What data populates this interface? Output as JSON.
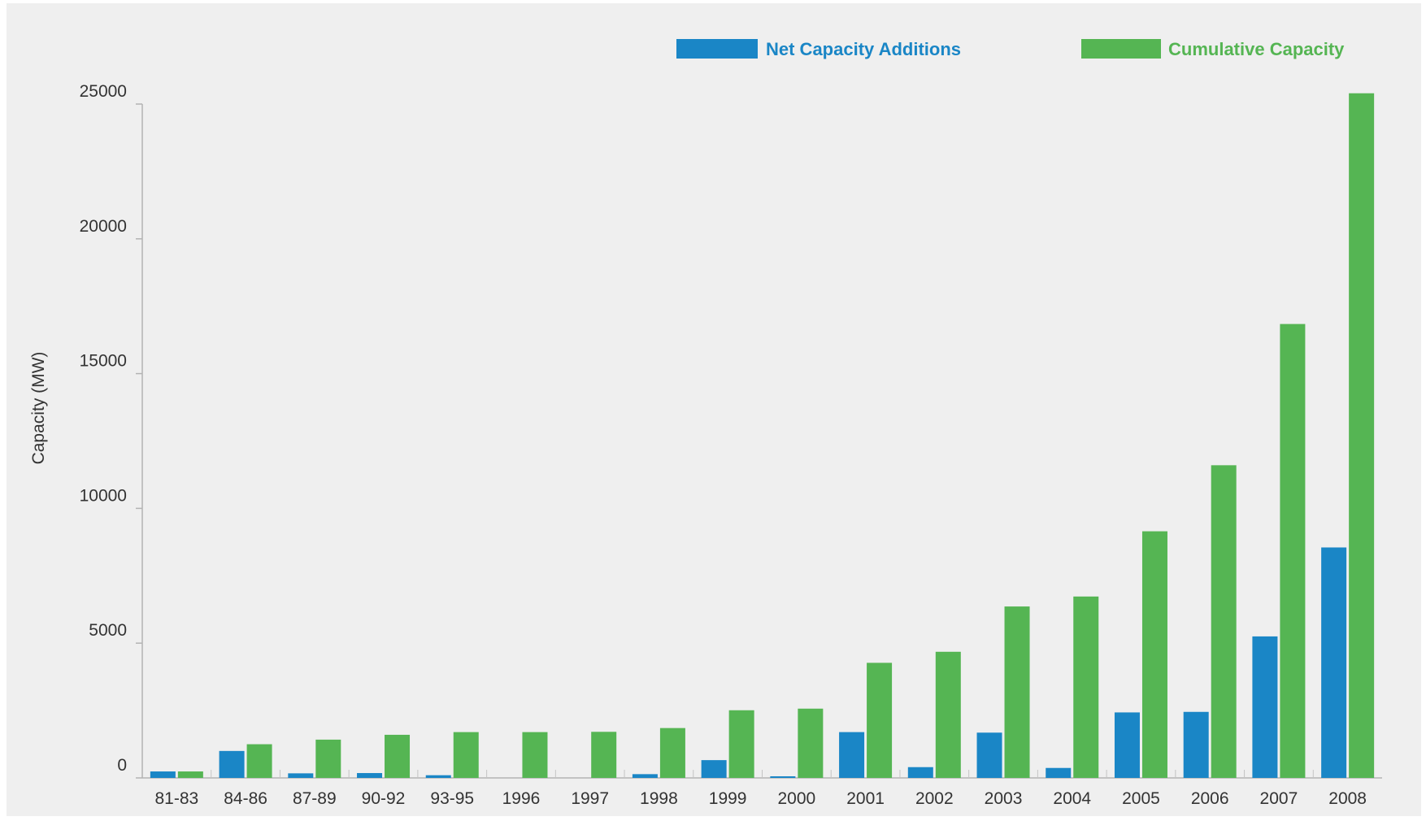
{
  "chart_data": {
    "type": "bar",
    "ylabel": "Capacity (MW)",
    "xlabel": "",
    "ylim": [
      0,
      25000
    ],
    "yticks": [
      0,
      5000,
      10000,
      15000,
      20000,
      25000
    ],
    "grid": false,
    "legend_position": "top-right",
    "categories": [
      "81-83",
      "84-86",
      "87-89",
      "90-92",
      "93-95",
      "1996",
      "1997",
      "1998",
      "1999",
      "2000",
      "2001",
      "2002",
      "2003",
      "2004",
      "2005",
      "2006",
      "2007",
      "2008"
    ],
    "series": [
      {
        "name": "Net Capacity Additions",
        "color": "#1a86c6",
        "values": [
          240,
          1000,
          170,
          180,
          100,
          0,
          0,
          140,
          660,
          60,
          1700,
          400,
          1680,
          370,
          2430,
          2450,
          5250,
          8550
        ]
      },
      {
        "name": "Cumulative Capacity",
        "color": "#55b553",
        "values": [
          240,
          1250,
          1420,
          1600,
          1700,
          1700,
          1710,
          1850,
          2510,
          2570,
          4270,
          4680,
          6360,
          6730,
          9150,
          11600,
          16840,
          25400
        ]
      }
    ]
  }
}
